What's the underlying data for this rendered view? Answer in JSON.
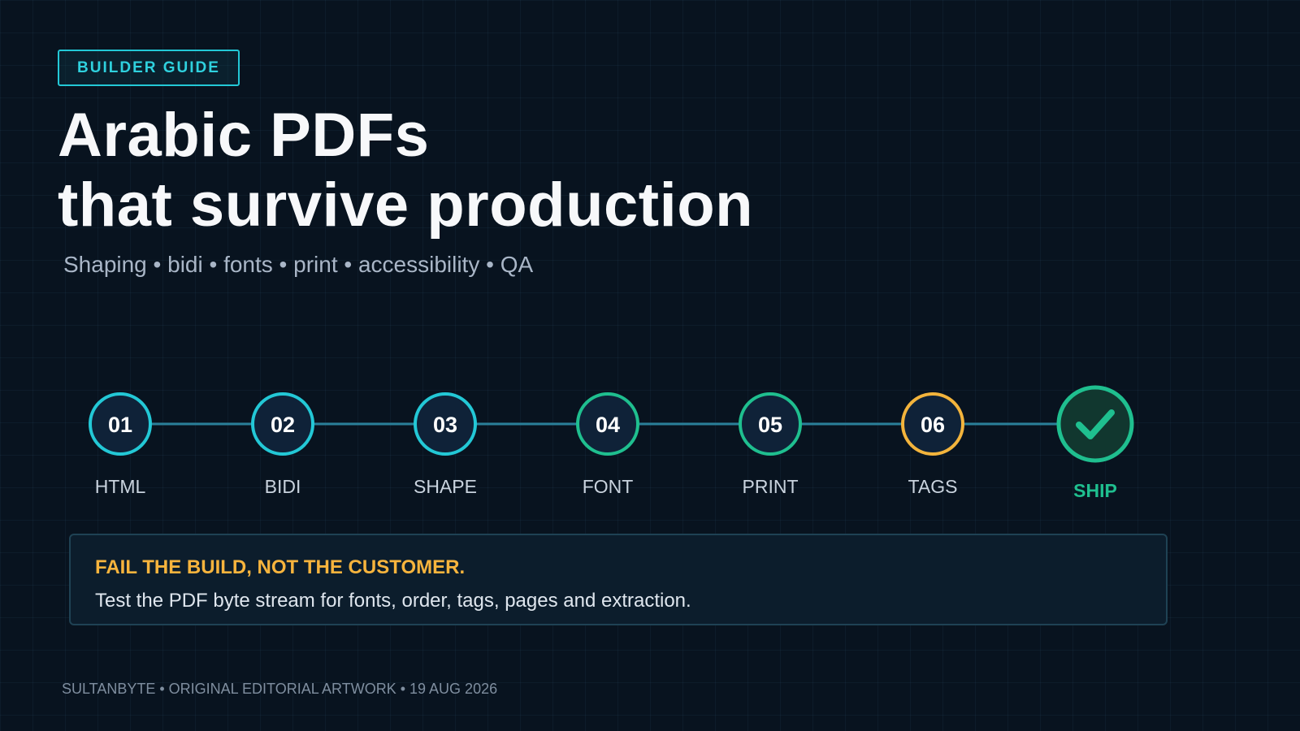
{
  "badge": {
    "label": "BUILDER GUIDE"
  },
  "title": {
    "line1": "Arabic PDFs",
    "line2": "that survive production"
  },
  "subtitle": "Shaping • bidi • fonts • print • accessibility • QA",
  "colors": {
    "background": "#08131f",
    "cyan": "#23c8d6",
    "green": "#1fbf8f",
    "amber": "#f3b43c",
    "node_fill": "#0f2238",
    "ship_fill": "#11372f",
    "connector": "#2a7f99"
  },
  "pipeline": {
    "steps": [
      {
        "number": "01",
        "label": "HTML",
        "color": "#23c8d6"
      },
      {
        "number": "02",
        "label": "BIDI",
        "color": "#23c8d6"
      },
      {
        "number": "03",
        "label": "SHAPE",
        "color": "#23c8d6"
      },
      {
        "number": "04",
        "label": "FONT",
        "color": "#1fbf8f"
      },
      {
        "number": "05",
        "label": "PRINT",
        "color": "#1fbf8f"
      },
      {
        "number": "06",
        "label": "TAGS",
        "color": "#f3b43c"
      }
    ],
    "final": {
      "label": "SHIP",
      "icon": "checkmark-icon",
      "color": "#1fbf8f"
    }
  },
  "callout": {
    "title": "FAIL THE BUILD, NOT THE CUSTOMER.",
    "text": "Test the PDF byte stream for fonts, order, tags, pages and extraction."
  },
  "footer": "SULTANBYTE • ORIGINAL EDITORIAL ARTWORK • 19 AUG 2026"
}
